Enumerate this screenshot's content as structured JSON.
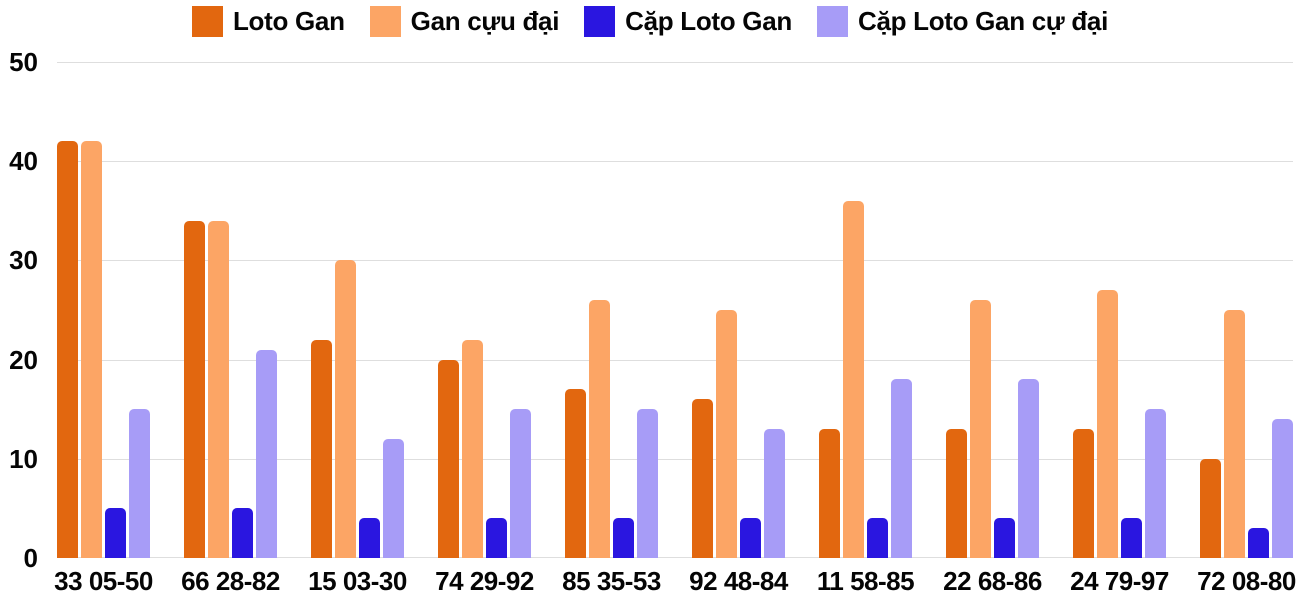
{
  "chart_data": {
    "type": "bar",
    "title": "",
    "xlabel": "",
    "ylabel": "",
    "categories": [
      "33 05-50",
      "66 28-82",
      "15 03-30",
      "74 29-92",
      "85 35-53",
      "92 48-84",
      "11 58-85",
      "22 68-86",
      "24 79-97",
      "72 08-80"
    ],
    "series": [
      {
        "name": "Loto Gan",
        "color": "#E2670F",
        "values": [
          42,
          34,
          22,
          20,
          17,
          16,
          13,
          13,
          13,
          10
        ]
      },
      {
        "name": "Gan cựu đại",
        "color": "#FCA565",
        "values": [
          42,
          34,
          30,
          22,
          26,
          25,
          36,
          26,
          27,
          25
        ]
      },
      {
        "name": "Cặp Loto Gan",
        "color": "#2A16E0",
        "values": [
          5,
          5,
          4,
          4,
          4,
          4,
          4,
          4,
          4,
          3
        ]
      },
      {
        "name": "Cặp Loto Gan cự đại",
        "color": "#A79CF7",
        "values": [
          15,
          21,
          12,
          15,
          15,
          13,
          18,
          18,
          15,
          14
        ]
      }
    ],
    "y_ticks": [
      0,
      10,
      20,
      30,
      40,
      50
    ],
    "ylim": [
      0,
      50
    ],
    "grid": true,
    "legend_position": "top"
  },
  "colors": {
    "grid": "#DEDEDE",
    "text": "#050505",
    "background": "#FFFFFF"
  }
}
